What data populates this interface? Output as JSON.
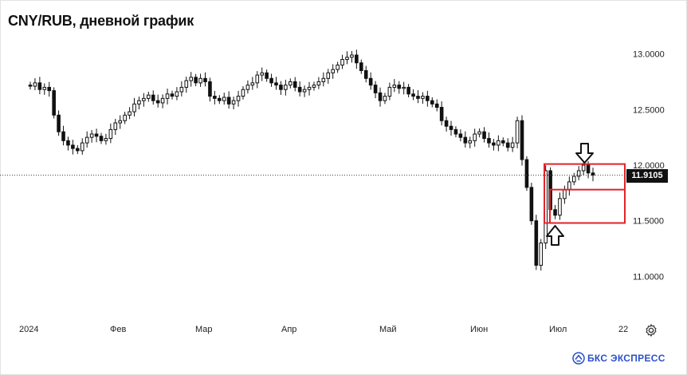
{
  "title": "CNY/RUB, дневной график",
  "last_price": "11.9105",
  "brand": {
    "text": "БКС ЭКСПРЕСС",
    "color": "#2a4fc9"
  },
  "icons": {
    "settings": "gear-icon",
    "brand_logo": "bks-logo-icon",
    "arrows": [
      "arrow-down-icon",
      "arrow-up-icon"
    ]
  },
  "colors": {
    "candles": "#111111",
    "highlight": "#e0242a",
    "grid": "#ececec"
  },
  "chart_data": {
    "type": "candlestick",
    "title": "CNY/RUB, дневной график",
    "ylim": [
      10.7,
      13.1
    ],
    "y_ticks": [
      "11.0000",
      "11.5000",
      "12.0000",
      "12.5000",
      "13.0000"
    ],
    "x_ticks": [
      "2024",
      "Фев",
      "Мар",
      "Апр",
      "Май",
      "Июн",
      "Июл",
      "22"
    ],
    "last_value": 11.9105,
    "grid": false,
    "annotations": [
      {
        "kind": "box",
        "y_range": [
          11.48,
          12.01
        ]
      },
      {
        "kind": "box",
        "y_range": [
          11.48,
          11.78
        ]
      },
      {
        "kind": "arrow-down",
        "at": 12.0
      },
      {
        "kind": "arrow-up",
        "at": 11.48
      }
    ],
    "closes": [
      12.71,
      12.74,
      12.68,
      12.7,
      12.67,
      12.45,
      12.3,
      12.22,
      12.18,
      12.15,
      12.13,
      12.2,
      12.25,
      12.28,
      12.26,
      12.22,
      12.24,
      12.32,
      12.38,
      12.4,
      12.45,
      12.48,
      12.55,
      12.58,
      12.6,
      12.63,
      12.58,
      12.56,
      12.6,
      12.64,
      12.62,
      12.66,
      12.7,
      12.76,
      12.79,
      12.74,
      12.78,
      12.75,
      12.62,
      12.6,
      12.58,
      12.61,
      12.55,
      12.58,
      12.62,
      12.68,
      12.72,
      12.74,
      12.81,
      12.83,
      12.78,
      12.74,
      12.72,
      12.68,
      12.72,
      12.75,
      12.7,
      12.66,
      12.68,
      12.7,
      12.72,
      12.75,
      12.78,
      12.83,
      12.86,
      12.9,
      12.95,
      12.97,
      12.99,
      12.92,
      12.85,
      12.78,
      12.72,
      12.65,
      12.58,
      12.62,
      12.7,
      12.72,
      12.69,
      12.7,
      12.64,
      12.62,
      12.6,
      12.62,
      12.58,
      12.55,
      12.52,
      12.4,
      12.35,
      12.32,
      12.28,
      12.25,
      12.2,
      12.22,
      12.28,
      12.3,
      12.24,
      12.2,
      12.18,
      12.22,
      12.2,
      12.16,
      12.2,
      12.4,
      12.05,
      11.8,
      11.5,
      11.1,
      11.3,
      11.95,
      11.6,
      11.55,
      11.7,
      11.78,
      11.85,
      11.9,
      11.95,
      12.0,
      11.93,
      11.91
    ]
  }
}
